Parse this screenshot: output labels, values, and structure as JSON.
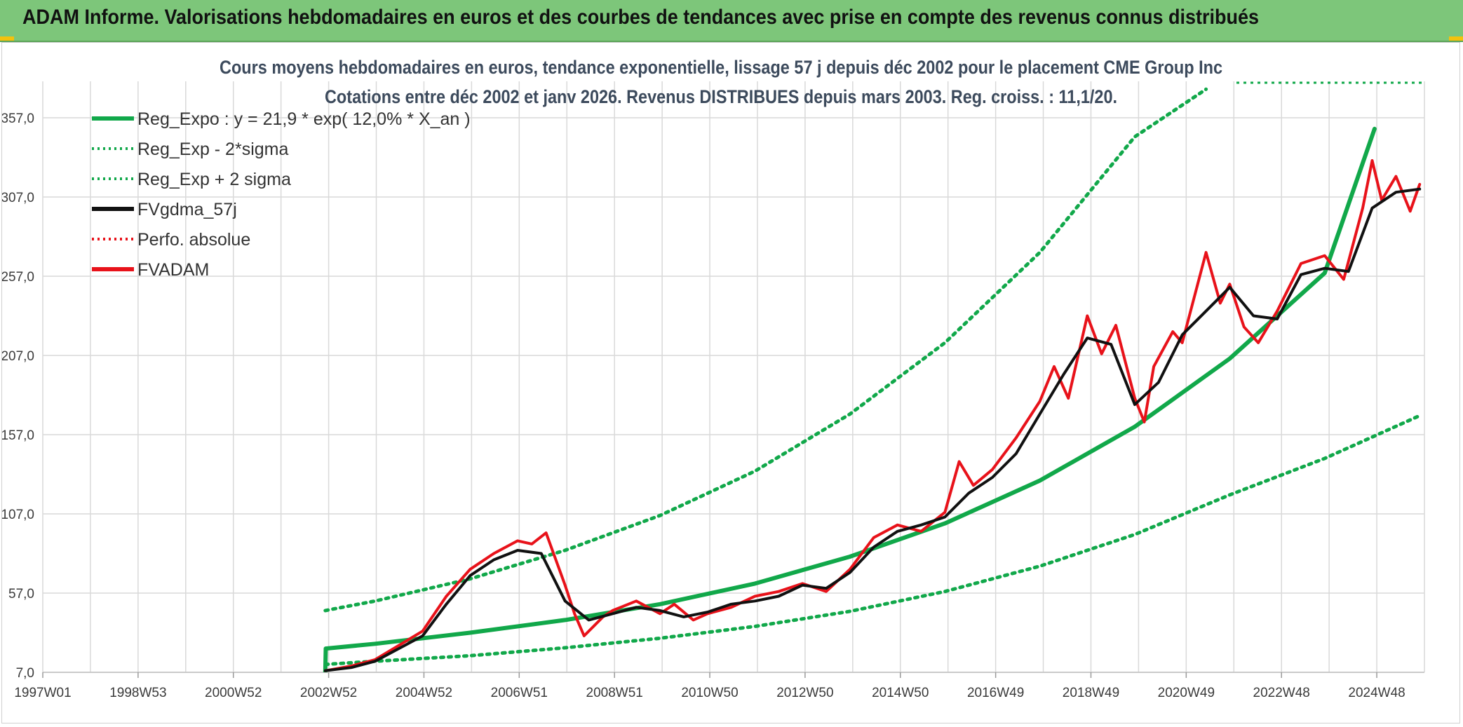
{
  "header": {
    "title": "ADAM Informe. Valorisations hebdomadaires en euros et des courbes de tendances avec prise en compte des revenus connus distribués"
  },
  "chart_data": {
    "type": "line",
    "title_line1": "Cours moyens hebdomadaires en euros, tendance exponentielle, lissage 57 j depuis déc 2002 pour le placement CME Group Inc",
    "title_line2": "Cotations entre déc 2002 et janv 2026. Revenus DISTRIBUES depuis mars 2003. Reg. croiss. : 11,1/20.",
    "x_ticks": [
      "1997W01",
      "1998W53",
      "2000W52",
      "2002W52",
      "2004W52",
      "2006W51",
      "2008W51",
      "2010W50",
      "2012W50",
      "2014W50",
      "2016W49",
      "2018W49",
      "2020W49",
      "2022W48",
      "2024W48"
    ],
    "x_range": [
      1997.0,
      2026.1
    ],
    "y_ticks": [
      "7,0",
      "57,0",
      "107,0",
      "157,0",
      "207,0",
      "257,0",
      "307,0",
      "357,0"
    ],
    "ylim": [
      7,
      380
    ],
    "grid": true,
    "legend_position": "top-left",
    "colors": {
      "green": "#11a84a",
      "black": "#111111",
      "red": "#e8121a",
      "grid": "#d9d9d9"
    },
    "legend": [
      {
        "label": "Reg_Expo : y = 21,9 * exp( 12,0% *  X_an )",
        "style": "solid",
        "color": "#11a84a"
      },
      {
        "label": "Reg_Exp - 2*sigma",
        "style": "dotted",
        "color": "#11a84a"
      },
      {
        "label": "Reg_Exp + 2 sigma",
        "style": "dotted",
        "color": "#11a84a"
      },
      {
        "label": "FVgdma_57j",
        "style": "solid",
        "color": "#111111"
      },
      {
        "label": "Perfo. absolue",
        "style": "dotted",
        "color": "#e8121a"
      },
      {
        "label": "FVADAM",
        "style": "solid",
        "color": "#e8121a"
      }
    ],
    "series": [
      {
        "name": "Reg_Expo",
        "x": [
          2002.95,
          2002.96,
          2004,
          2006,
          2008,
          2010,
          2012,
          2014,
          2016,
          2018,
          2020,
          2022,
          2024,
          2025.05
        ],
        "y": [
          7,
          22,
          25,
          32,
          40,
          50,
          63,
          80,
          101,
          128,
          162,
          205,
          259,
          350
        ]
      },
      {
        "name": "Reg_Exp - 2*sigma",
        "x": [
          2002.95,
          2004,
          2006,
          2008,
          2010,
          2012,
          2014,
          2016,
          2018,
          2020,
          2022,
          2024,
          2026
        ],
        "y": [
          12,
          14,
          17.5,
          22.5,
          28.5,
          36,
          45.5,
          58,
          74,
          94,
          119,
          142,
          169
        ]
      },
      {
        "name": "Reg_Exp + 2 sigma",
        "x": [
          2002.95,
          2004,
          2006,
          2008,
          2010,
          2012,
          2014,
          2016,
          2018,
          2020,
          2021.5
        ],
        "y": [
          46,
          52,
          66,
          84,
          106,
          134,
          170,
          215,
          272,
          345,
          375
        ]
      },
      {
        "name": "FVgdma_57j",
        "x": [
          2002.95,
          2003.5,
          2004,
          2004.5,
          2005,
          2005.5,
          2006,
          2006.5,
          2007,
          2007.5,
          2008,
          2008.5,
          2009,
          2009.5,
          2010,
          2010.5,
          2011,
          2011.5,
          2012,
          2012.5,
          2013,
          2013.5,
          2014,
          2014.5,
          2015,
          2015.5,
          2016,
          2016.5,
          2017,
          2017.5,
          2018,
          2018.5,
          2019,
          2019.5,
          2020,
          2020.5,
          2021,
          2021.5,
          2022,
          2022.5,
          2023,
          2023.5,
          2024,
          2024.5,
          2025,
          2025.5,
          2026
        ],
        "y": [
          8,
          10,
          14,
          22,
          30,
          50,
          68,
          78,
          84,
          82,
          52,
          40,
          44,
          48,
          46,
          42,
          45,
          50,
          52,
          55,
          62,
          60,
          70,
          86,
          96,
          100,
          105,
          120,
          130,
          145,
          170,
          195,
          218,
          214,
          176,
          190,
          220,
          235,
          250,
          232,
          230,
          258,
          262,
          260,
          300,
          310,
          312
        ]
      },
      {
        "name": "FVADAM",
        "x": [
          2002.95,
          2003.5,
          2004,
          2004.5,
          2005,
          2005.5,
          2006,
          2006.5,
          2007,
          2007.3,
          2007.6,
          2008,
          2008.2,
          2008.4,
          2008.8,
          2009,
          2009.5,
          2010,
          2010.3,
          2010.7,
          2011,
          2011.5,
          2012,
          2012.5,
          2013,
          2013.5,
          2014,
          2014.5,
          2015,
          2015.5,
          2016,
          2016.3,
          2016.6,
          2017,
          2017.5,
          2018,
          2018.3,
          2018.6,
          2019,
          2019.3,
          2019.6,
          2020,
          2020.2,
          2020.4,
          2020.8,
          2021,
          2021.5,
          2021.8,
          2022,
          2022.3,
          2022.6,
          2023,
          2023.5,
          2024,
          2024.4,
          2024.8,
          2025,
          2025.2,
          2025.5,
          2025.8,
          2026
        ],
        "y": [
          8,
          11,
          15,
          24,
          33,
          55,
          72,
          82,
          90,
          88,
          95,
          62,
          44,
          30,
          42,
          46,
          52,
          44,
          50,
          40,
          44,
          48,
          55,
          58,
          63,
          58,
          72,
          92,
          100,
          96,
          108,
          140,
          125,
          135,
          155,
          178,
          200,
          180,
          232,
          208,
          226,
          180,
          165,
          200,
          222,
          215,
          272,
          240,
          252,
          225,
          215,
          235,
          265,
          270,
          255,
          300,
          330,
          305,
          320,
          298,
          315
        ]
      }
    ]
  }
}
